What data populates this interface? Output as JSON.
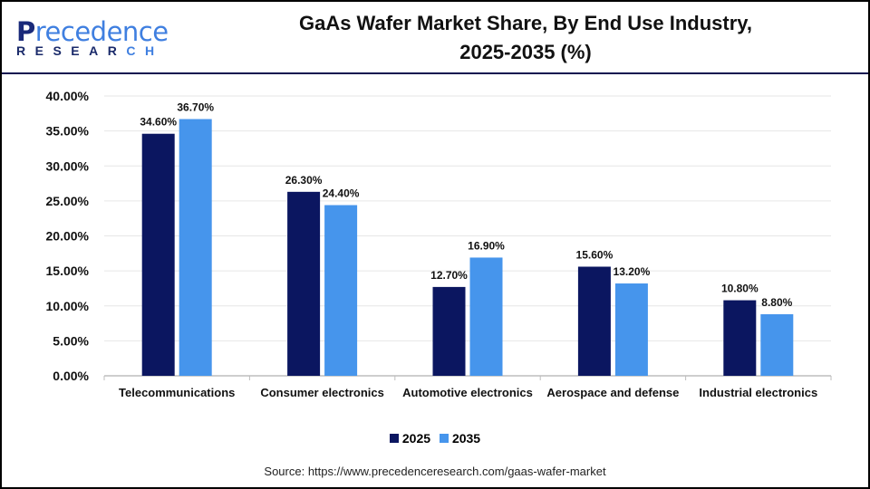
{
  "logo": {
    "text_main_a": "P",
    "text_main_b": "recedence",
    "text_sub_a": "RESEAR",
    "text_sub_b": "CH"
  },
  "chart_data": {
    "type": "bar",
    "title": "GaAs Wafer Market Share, By End Use Industry, 2025-2035 (%)",
    "title_line1": "GaAs Wafer Market Share, By End Use Industry,",
    "title_line2": "2025-2035 (%)",
    "categories": [
      "Telecommunications",
      "Consumer electronics",
      "Automotive electronics",
      "Aerospace and defense",
      "Industrial electronics"
    ],
    "series": [
      {
        "name": "2025",
        "color": "#0b1660",
        "values": [
          34.6,
          26.3,
          12.7,
          15.6,
          10.8
        ],
        "labels": [
          "34.60%",
          "26.30%",
          "12.70%",
          "15.60%",
          "10.80%"
        ]
      },
      {
        "name": "2035",
        "color": "#4695ec",
        "values": [
          36.7,
          24.4,
          16.9,
          13.2,
          8.8
        ],
        "labels": [
          "36.70%",
          "24.40%",
          "16.90%",
          "13.20%",
          "8.80%"
        ]
      }
    ],
    "yticks": [
      "0.00%",
      "5.00%",
      "10.00%",
      "15.00%",
      "20.00%",
      "25.00%",
      "30.00%",
      "35.00%",
      "40.00%"
    ],
    "ylim": [
      0,
      40
    ],
    "grid": true,
    "legend_position": "bottom"
  },
  "source": "Source: https://www.precedenceresearch.com/gaas-wafer-market"
}
